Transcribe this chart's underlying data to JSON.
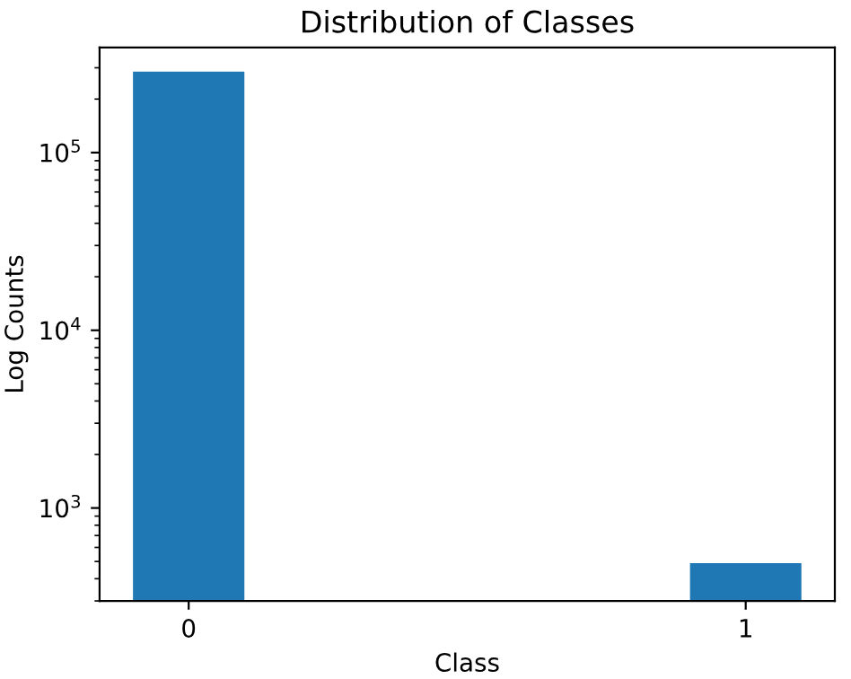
{
  "chart_data": {
    "type": "bar",
    "title": "Distribution of Classes",
    "xlabel": "Class",
    "ylabel": "Log Counts",
    "x": [
      0,
      1
    ],
    "values": [
      285000,
      490
    ],
    "color": "#1f77b4",
    "log": "y",
    "xlim": [
      -0.16,
      1.16
    ],
    "xticks": [
      0,
      1
    ],
    "ylim": [
      300,
      390000
    ],
    "yticks": [
      {
        "value": 1000,
        "label": "10$^{3}$"
      },
      {
        "value": 10000,
        "label": "10$^{4}$"
      },
      {
        "value": 100000,
        "label": "10$^{5}$"
      }
    ],
    "grid": false,
    "legend": false
  }
}
